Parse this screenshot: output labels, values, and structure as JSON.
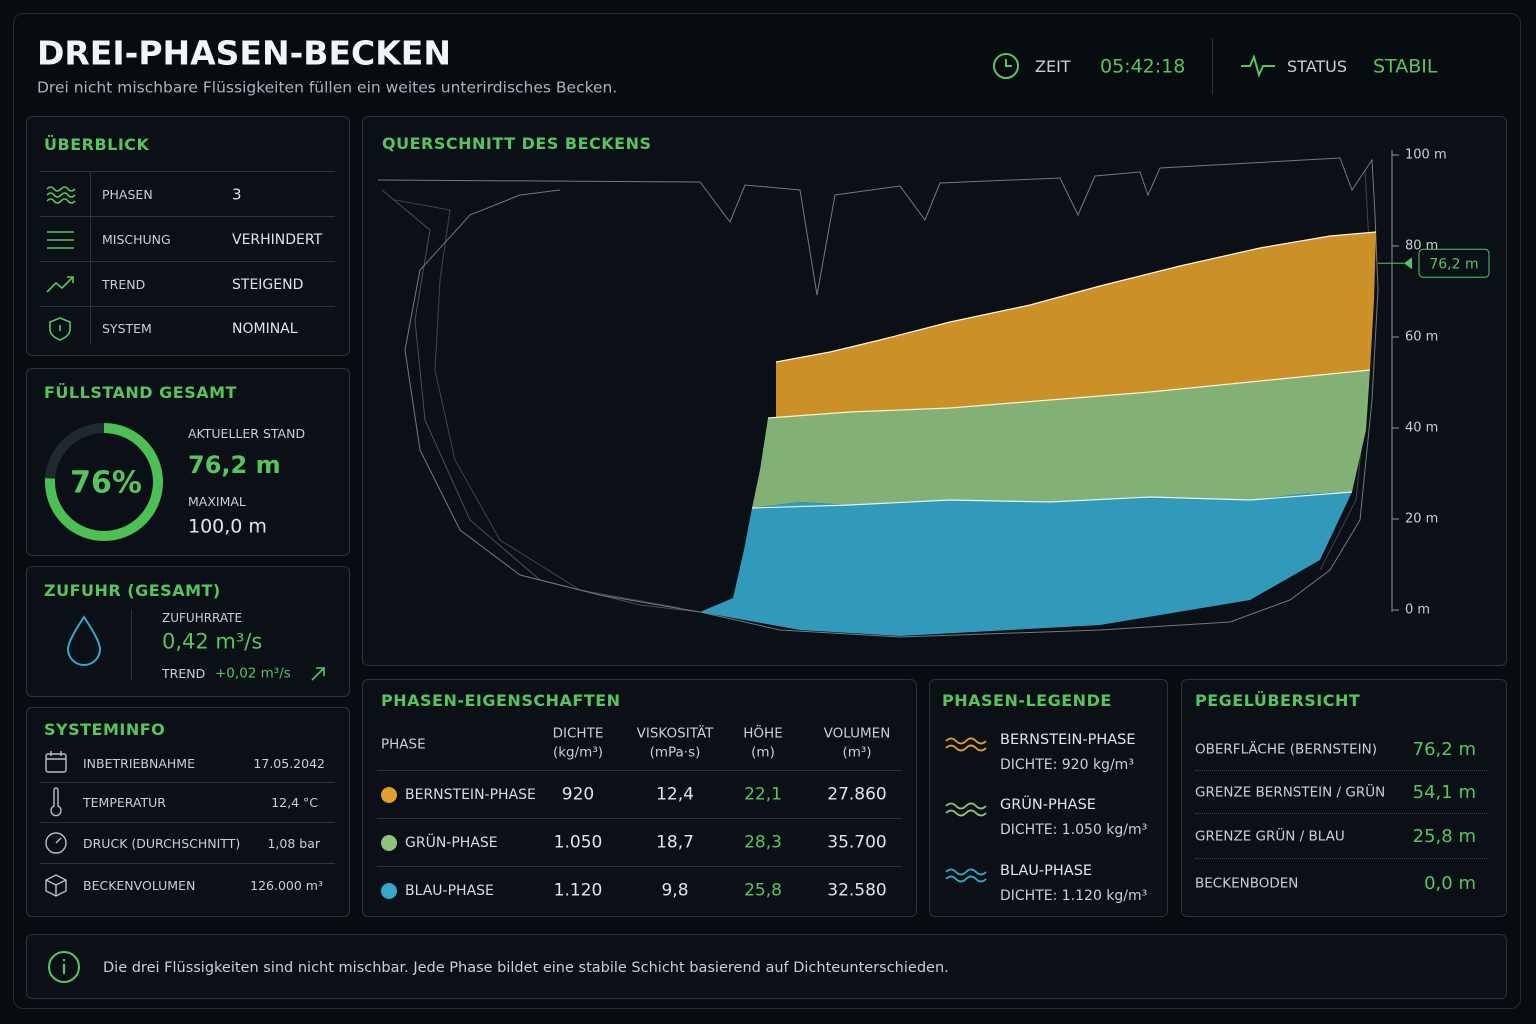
{
  "header": {
    "title": "DREI-PHASEN-BECKEN",
    "subtitle": "Drei nicht mischbare Flüssigkeiten füllen ein weites unterirdisches Becken.",
    "time_label": "ZEIT",
    "time": "05:42:18",
    "status_label": "STATUS",
    "status": "STABIL"
  },
  "overview": {
    "title": "ÜBERBLICK",
    "rows": [
      [
        "PHASEN",
        "3"
      ],
      [
        "MISCHUNG",
        "VERHINDERT"
      ],
      [
        "TREND",
        "STEIGEND"
      ],
      [
        "SYSTEM",
        "NOMINAL"
      ]
    ]
  },
  "fill_level": {
    "title": "FÜLLSTAND GESAMT",
    "percent": {
      "value": 76,
      "label": "76%"
    },
    "current_label": "AKTUELLER STAND",
    "current": "76,2 m",
    "max_label": "MAXIMAL",
    "max": "100,0 m"
  },
  "inflow": {
    "title": "ZUFUHR (GESAMT)",
    "rate_label": "ZUFUHRRATE",
    "rate": "0,42 m³/s",
    "trend_label": "TREND",
    "trend": "+0,02 m³/s"
  },
  "system_info": {
    "title": "SYSTEMINFO",
    "rows": [
      [
        "INBETRIEBNAHME",
        "17.05.2042"
      ],
      [
        "TEMPERATUR",
        "12,4 °C"
      ],
      [
        "DRUCK (DURCHSCHNITT)",
        "1,08 bar"
      ],
      [
        "BECKENVOLUMEN",
        "126.000 m³"
      ]
    ]
  },
  "cross_section": {
    "title": "QUERSCHNITT DES BECKENS",
    "ylim": [
      0,
      100
    ],
    "yticks": [
      {
        "value": 0,
        "label": "0 m"
      },
      {
        "value": 20,
        "label": "20 m"
      },
      {
        "value": 40,
        "label": "40 m"
      },
      {
        "value": 60,
        "label": "60 m"
      },
      {
        "value": 80,
        "label": "80 m"
      },
      {
        "value": 100,
        "label": "100 m"
      }
    ],
    "level": {
      "value": 76.2,
      "label": "76,2 m"
    }
  },
  "properties": {
    "title": "PHASEN-EIGENSCHAFTEN",
    "columns": [
      [
        "PHASE"
      ],
      [
        "DICHTE",
        "(kg/m³)"
      ],
      [
        "VISKOSITÄT",
        "(mPa·s)"
      ],
      [
        "HÖHE",
        "(m)"
      ],
      [
        "VOLUMEN",
        "(m³)"
      ]
    ],
    "rows": [
      {
        "color": "#e0a02a",
        "cells": [
          "BERNSTEIN-PHASE",
          "920",
          "12,4",
          "22,1",
          "27.860"
        ]
      },
      {
        "color": "#8fc27f",
        "cells": [
          "GRÜN-PHASE",
          "1.050",
          "18,7",
          "28,3",
          "35.700"
        ]
      },
      {
        "color": "#35a9cc",
        "cells": [
          "BLAU-PHASE",
          "1.120",
          "9,8",
          "25,8",
          "32.580"
        ]
      }
    ]
  },
  "legend": {
    "title": "PHASEN-LEGENDE",
    "items": [
      {
        "name": "BERNSTEIN-PHASE",
        "detail": "DICHTE: 920 kg/m³",
        "color": "#e0a02a"
      },
      {
        "name": "GRÜN-PHASE",
        "detail": "DICHTE: 1.050 kg/m³",
        "color": "#8fc27f"
      },
      {
        "name": "BLAU-PHASE",
        "detail": "DICHTE: 1.120 kg/m³",
        "color": "#35a9cc"
      }
    ]
  },
  "levels": {
    "title": "PEGELÜBERSICHT",
    "rows": [
      [
        "OBERFLÄCHE (BERNSTEIN)",
        "76,2 m"
      ],
      [
        "GRENZE BERNSTEIN / GRÜN",
        "54,1 m"
      ],
      [
        "GRENZE GRÜN / BLAU",
        "25,8 m"
      ],
      [
        "BECKENBODEN",
        "0,0 m"
      ]
    ]
  },
  "footer": {
    "note": "Die drei Flüssigkeiten sind nicht mischbar. Jede Phase bildet eine stabile Schicht basierend auf Dichteunterschieden."
  }
}
